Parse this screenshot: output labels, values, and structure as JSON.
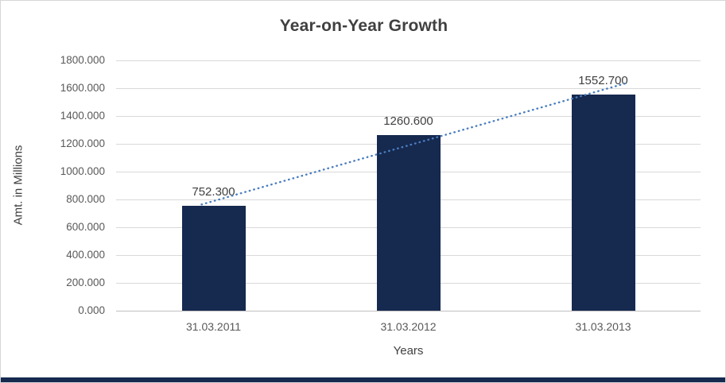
{
  "chart_data": {
    "type": "bar",
    "title": "Year-on-Year Growth",
    "categories": [
      "31.03.2011",
      "31.03.2012",
      "31.03.2013"
    ],
    "values": [
      752.3,
      1260.6,
      1552.7
    ],
    "data_labels": [
      "752.300",
      "1260.600",
      "1552.700"
    ],
    "xlabel": "Years",
    "ylabel": "Amt. in Millions",
    "ylim": [
      0,
      1800
    ],
    "y_tick_step": 200,
    "y_ticks": [
      "0.000",
      "200.000",
      "400.000",
      "600.000",
      "800.000",
      "1000.000",
      "1200.000",
      "1400.000",
      "1600.000",
      "1800.000"
    ],
    "grid": true,
    "legend": false,
    "trendline": {
      "type": "linear",
      "style": "dotted"
    },
    "colors": {
      "bar": "#16294f",
      "trendline": "#4a7ebf",
      "gridline": "#d9d9d9",
      "axis_text": "#595959",
      "label_text": "#404040",
      "accent_strip": "#16294f",
      "border": "#d6d6d6"
    }
  }
}
